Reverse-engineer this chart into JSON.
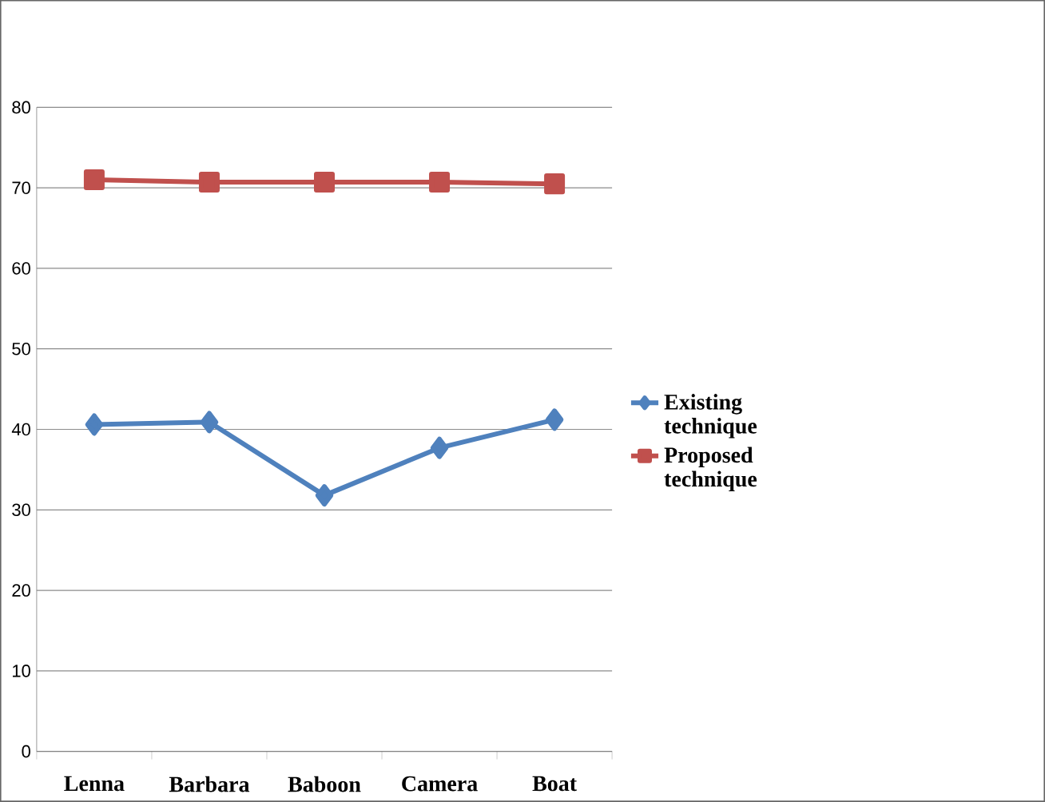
{
  "chart_data": {
    "type": "line",
    "categories": [
      "Lenna",
      "Barbara",
      "Baboon",
      "Camera",
      "Boat"
    ],
    "series": [
      {
        "name": "Existing technique",
        "color": "#4f81bd",
        "marker": "diamond",
        "values": [
          40.6,
          40.9,
          31.8,
          37.7,
          41.2
        ]
      },
      {
        "name": "Proposed technique",
        "color": "#c0504d",
        "marker": "square",
        "values": [
          71.0,
          70.7,
          70.7,
          70.7,
          70.5
        ]
      }
    ],
    "ylim": [
      0,
      80
    ],
    "yticks": [
      0,
      10,
      20,
      30,
      40,
      50,
      60,
      70,
      80
    ],
    "grid": "y",
    "legend": "right",
    "line_style": "solid"
  }
}
